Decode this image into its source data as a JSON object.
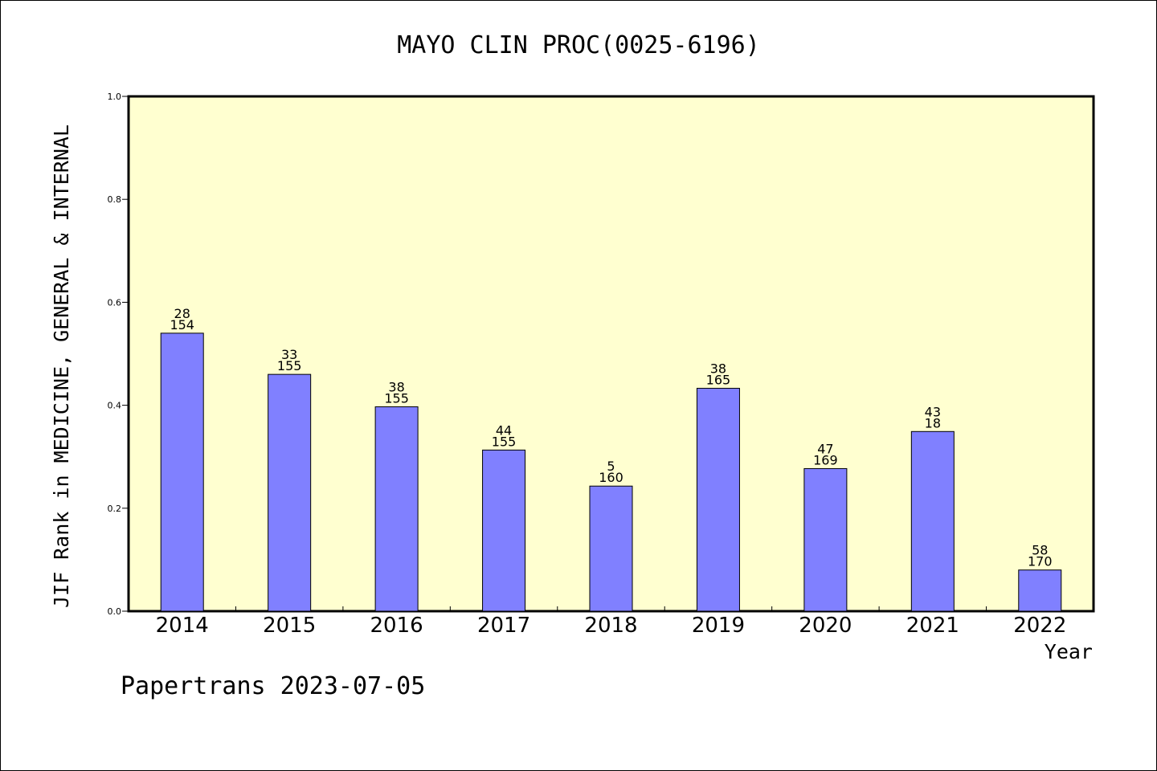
{
  "chart_data": {
    "type": "bar",
    "title": "MAYO CLIN PROC(0025-6196)",
    "xlabel": "Year",
    "ylabel": "JIF Rank in MEDICINE, GENERAL & INTERNAL",
    "categories": [
      "2014",
      "2015",
      "2016",
      "2017",
      "2018",
      "2019",
      "2020",
      "2021",
      "2022"
    ],
    "values": [
      0.54,
      0.46,
      0.397,
      0.313,
      0.243,
      0.433,
      0.277,
      0.349,
      0.08
    ],
    "labels_top": [
      "28",
      "33",
      "38",
      "44",
      "5",
      "38",
      "47",
      "43",
      "58"
    ],
    "labels_bottom": [
      "154",
      "155",
      "155",
      "155",
      "160",
      "165",
      "169",
      "18",
      "170"
    ],
    "ylim": [
      0,
      1.0
    ],
    "yticks": [
      "0.0",
      "0.2",
      "0.4",
      "0.6",
      "0.8",
      "1.0"
    ],
    "grid": false,
    "colors": {
      "bar": "#8080ff",
      "plot_background": "#ffffd0"
    }
  },
  "footer": "Papertrans 2023-07-05"
}
